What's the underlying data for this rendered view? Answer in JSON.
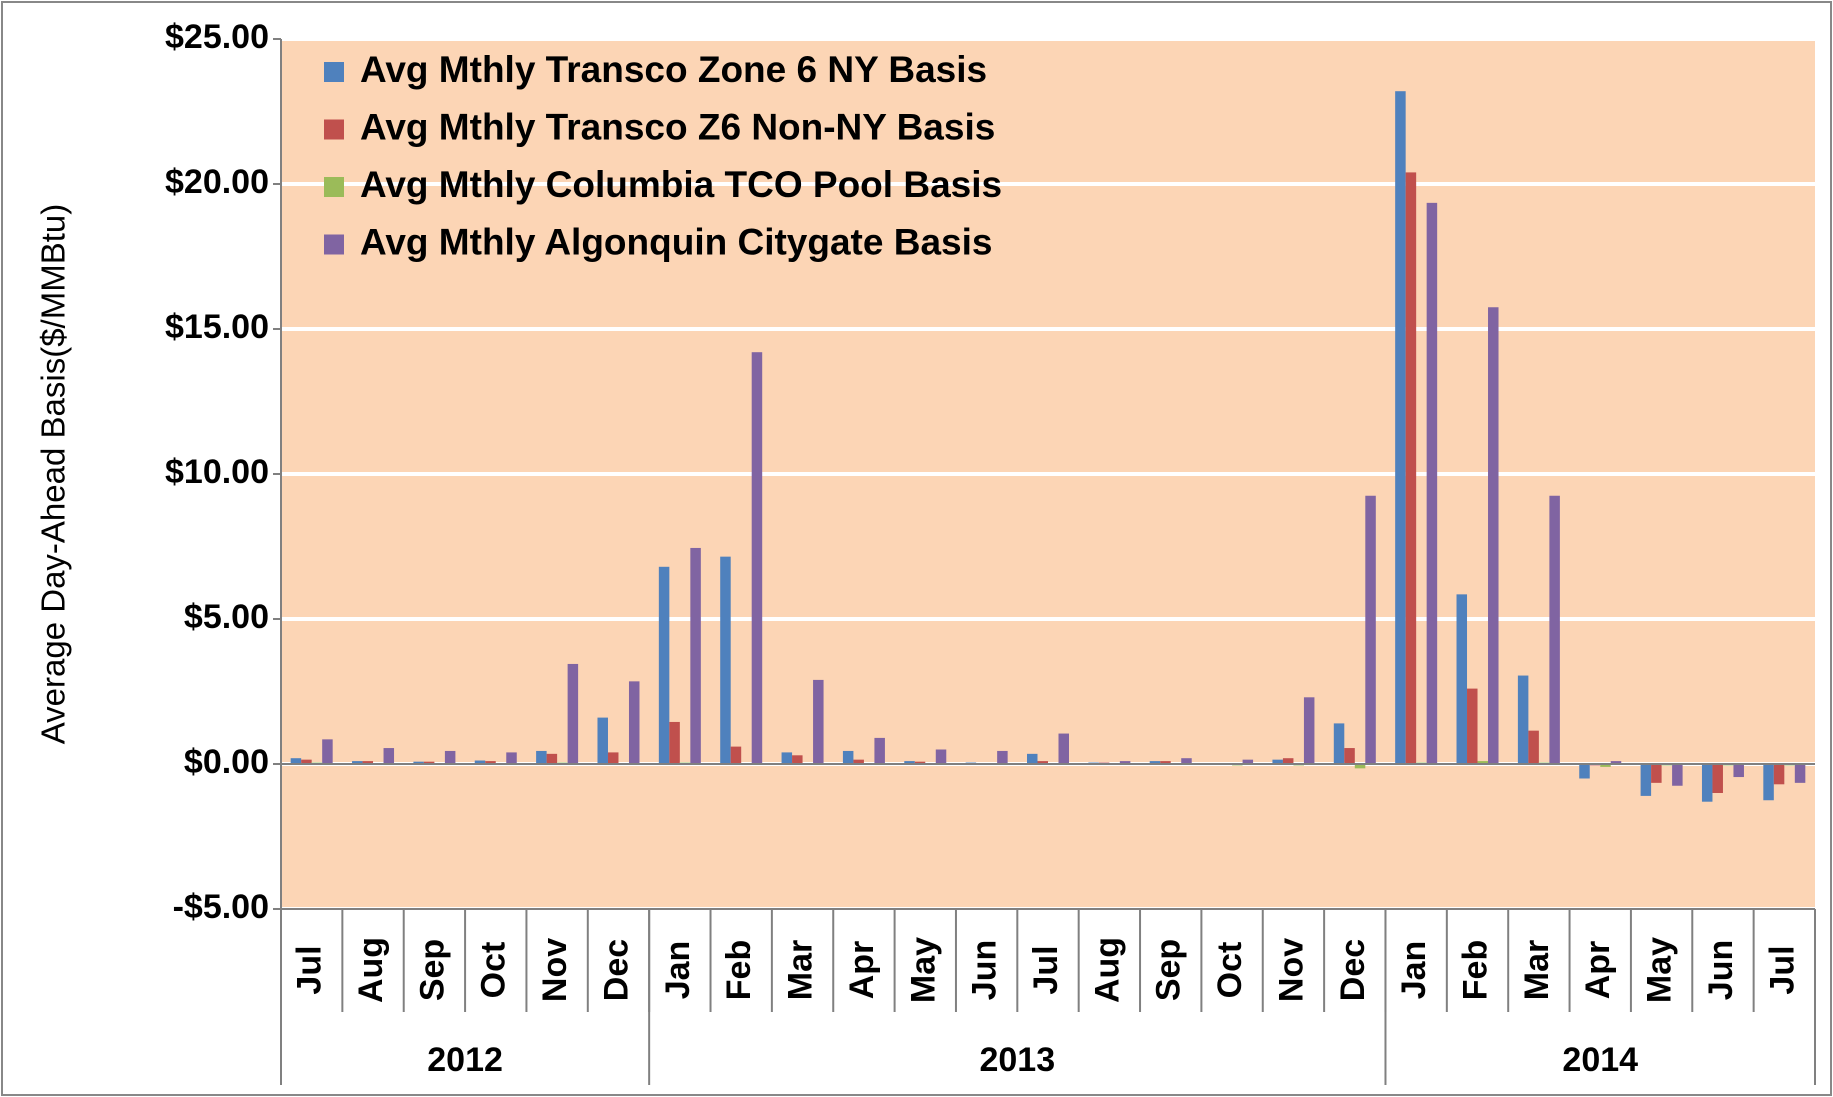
{
  "chart_data": {
    "type": "bar",
    "y_label": "Average Day-Ahead Basis($/MMBtu)",
    "categories": [
      "Jul",
      "Aug",
      "Sep",
      "Oct",
      "Nov",
      "Dec",
      "Jan",
      "Feb",
      "Mar",
      "Apr",
      "May",
      "Jun",
      "Jul",
      "Aug",
      "Sep",
      "Oct",
      "Nov",
      "Dec",
      "Jan",
      "Feb",
      "Mar",
      "Apr",
      "May",
      "Jun",
      "Jul"
    ],
    "year_groups": [
      {
        "label": "2012",
        "count": 6
      },
      {
        "label": "2013",
        "count": 12
      },
      {
        "label": "2014",
        "count": 7
      }
    ],
    "series": [
      {
        "name": "Avg Mthly Transco Zone 6 NY Basis",
        "color": "#4f81bd",
        "values": [
          0.2,
          0.1,
          0.08,
          0.12,
          0.45,
          1.6,
          6.8,
          7.15,
          0.4,
          0.45,
          0.1,
          0.05,
          0.35,
          0.05,
          0.1,
          0.03,
          0.15,
          1.4,
          23.2,
          5.85,
          3.05,
          -0.5,
          -1.1,
          -1.3,
          -1.25
        ]
      },
      {
        "name": "Avg Mthly Transco Z6 Non-NY Basis",
        "color": "#c0504d",
        "values": [
          0.15,
          0.1,
          0.08,
          0.1,
          0.35,
          0.4,
          1.45,
          0.6,
          0.3,
          0.15,
          0.08,
          0.02,
          0.1,
          0.05,
          0.1,
          0.03,
          0.2,
          0.55,
          20.4,
          2.6,
          1.15,
          -0.05,
          -0.65,
          -1.0,
          -0.7
        ]
      },
      {
        "name": "Avg Mthly Columbia TCO Pool Basis",
        "color": "#9bbb59",
        "values": [
          0.05,
          0.02,
          0.02,
          0.02,
          0.05,
          0.02,
          0.05,
          0.03,
          0.02,
          0.02,
          0.02,
          0.01,
          0.02,
          0.01,
          0.02,
          -0.05,
          -0.05,
          -0.15,
          0.05,
          0.1,
          0.05,
          -0.1,
          -0.05,
          -0.05,
          -0.05
        ]
      },
      {
        "name": "Avg Mthly Algonquin Citygate Basis",
        "color": "#8064a2",
        "values": [
          0.85,
          0.55,
          0.45,
          0.4,
          3.45,
          2.85,
          7.45,
          14.2,
          2.9,
          0.9,
          0.5,
          0.45,
          1.05,
          0.1,
          0.2,
          0.15,
          2.3,
          9.25,
          19.35,
          15.75,
          9.25,
          0.1,
          -0.75,
          -0.45,
          -0.65
        ]
      }
    ],
    "ylim": [
      -5,
      25
    ],
    "yticks": [
      {
        "value": -5,
        "label": "-$5.00"
      },
      {
        "value": 0,
        "label": "$0.00"
      },
      {
        "value": 5,
        "label": "$5.00"
      },
      {
        "value": 10,
        "label": "$10.00"
      },
      {
        "value": 15,
        "label": "$15.00"
      },
      {
        "value": 20,
        "label": "$20.00"
      },
      {
        "value": 25,
        "label": "$25.00"
      }
    ],
    "grid": true,
    "plot_background": "#fcd5b5"
  }
}
